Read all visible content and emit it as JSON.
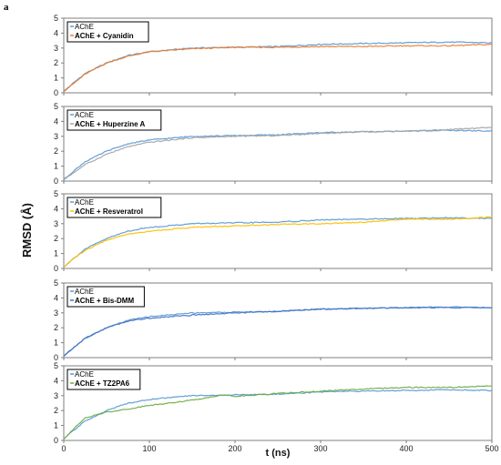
{
  "figure": {
    "panel_letter": "a",
    "ylabel": "RMSD (Å)",
    "xlabel": "t (ns)"
  },
  "chart_data": [
    {
      "type": "line",
      "xlabel": "",
      "ylabel": "",
      "xlim": [
        0,
        500
      ],
      "ylim": [
        0,
        5
      ],
      "xticks": [],
      "yticks": [
        0,
        1,
        2,
        3,
        4,
        5
      ],
      "grid": false,
      "legend_position": "top-left",
      "series": [
        {
          "name": "AChE",
          "color": "#5b9bd5",
          "x": [
            0,
            10,
            25,
            50,
            75,
            100,
            150,
            200,
            250,
            300,
            350,
            400,
            450,
            500
          ],
          "y": [
            0.1,
            0.6,
            1.3,
            2.0,
            2.5,
            2.75,
            3.0,
            3.05,
            3.1,
            3.25,
            3.3,
            3.35,
            3.4,
            3.35
          ]
        },
        {
          "name": "AChE + Cyanidin",
          "color": "#ed7d31",
          "x": [
            0,
            10,
            25,
            50,
            75,
            100,
            150,
            200,
            250,
            300,
            350,
            400,
            450,
            500
          ],
          "y": [
            0.1,
            0.55,
            1.25,
            2.0,
            2.45,
            2.75,
            2.95,
            3.05,
            3.05,
            3.1,
            3.1,
            3.15,
            3.15,
            3.25
          ]
        }
      ]
    },
    {
      "type": "line",
      "xlabel": "",
      "ylabel": "",
      "xlim": [
        0,
        500
      ],
      "ylim": [
        0,
        5
      ],
      "xticks": [],
      "yticks": [
        0,
        1,
        2,
        3,
        4,
        5
      ],
      "grid": false,
      "legend_position": "top-left",
      "series": [
        {
          "name": "AChE",
          "color": "#5b9bd5",
          "x": [
            0,
            10,
            25,
            50,
            75,
            100,
            150,
            200,
            250,
            300,
            350,
            400,
            450,
            500
          ],
          "y": [
            0.1,
            0.6,
            1.3,
            2.0,
            2.5,
            2.75,
            3.0,
            3.05,
            3.1,
            3.25,
            3.3,
            3.35,
            3.4,
            3.35
          ]
        },
        {
          "name": "AChE + Huperzine A",
          "color": "#a5a5a5",
          "x": [
            0,
            10,
            25,
            50,
            75,
            100,
            150,
            200,
            250,
            300,
            350,
            400,
            450,
            500
          ],
          "y": [
            0.1,
            0.5,
            1.1,
            1.8,
            2.3,
            2.6,
            2.9,
            3.0,
            3.05,
            3.2,
            3.3,
            3.35,
            3.45,
            3.6
          ]
        }
      ]
    },
    {
      "type": "line",
      "xlabel": "",
      "ylabel": "",
      "xlim": [
        0,
        500
      ],
      "ylim": [
        0,
        5
      ],
      "xticks": [],
      "yticks": [
        0,
        1,
        2,
        3,
        4,
        5
      ],
      "grid": false,
      "legend_position": "top-left",
      "series": [
        {
          "name": "AChE",
          "color": "#5b9bd5",
          "x": [
            0,
            10,
            25,
            50,
            75,
            100,
            150,
            200,
            250,
            300,
            350,
            400,
            450,
            500
          ],
          "y": [
            0.1,
            0.6,
            1.3,
            2.0,
            2.5,
            2.75,
            3.0,
            3.05,
            3.1,
            3.25,
            3.3,
            3.35,
            3.4,
            3.35
          ]
        },
        {
          "name": "AChE + Resveratrol",
          "color": "#ffc000",
          "x": [
            0,
            10,
            25,
            50,
            75,
            100,
            150,
            200,
            250,
            300,
            350,
            400,
            450,
            500
          ],
          "y": [
            0.1,
            0.6,
            1.2,
            1.9,
            2.3,
            2.5,
            2.75,
            2.85,
            2.95,
            3.0,
            3.1,
            3.3,
            3.3,
            3.45
          ]
        }
      ]
    },
    {
      "type": "line",
      "xlabel": "",
      "ylabel": "",
      "xlim": [
        0,
        500
      ],
      "ylim": [
        0,
        5
      ],
      "xticks": [],
      "yticks": [
        0,
        1,
        2,
        3,
        4,
        5
      ],
      "grid": false,
      "legend_position": "top-left",
      "series": [
        {
          "name": "AChE",
          "color": "#5b9bd5",
          "x": [
            0,
            10,
            25,
            50,
            75,
            100,
            150,
            200,
            250,
            300,
            350,
            400,
            450,
            500
          ],
          "y": [
            0.1,
            0.6,
            1.3,
            2.0,
            2.5,
            2.75,
            3.0,
            3.05,
            3.1,
            3.25,
            3.3,
            3.35,
            3.4,
            3.35
          ]
        },
        {
          "name": "AChE + Bis-DMM",
          "color": "#4472c4",
          "x": [
            0,
            10,
            25,
            50,
            75,
            100,
            150,
            200,
            250,
            300,
            350,
            400,
            450,
            500
          ],
          "y": [
            0.1,
            0.6,
            1.3,
            2.0,
            2.45,
            2.65,
            2.85,
            3.0,
            3.1,
            3.25,
            3.3,
            3.35,
            3.35,
            3.35
          ]
        }
      ]
    },
    {
      "type": "line",
      "xlabel": "t (ns)",
      "ylabel": "",
      "xlim": [
        0,
        500
      ],
      "ylim": [
        0,
        5
      ],
      "xticks": [
        0,
        100,
        200,
        300,
        400,
        500
      ],
      "yticks": [
        0,
        1,
        2,
        3,
        4,
        5
      ],
      "grid": false,
      "legend_position": "top-left",
      "series": [
        {
          "name": "AChE",
          "color": "#5b9bd5",
          "x": [
            0,
            10,
            25,
            50,
            75,
            100,
            150,
            200,
            250,
            300,
            350,
            400,
            450,
            500
          ],
          "y": [
            0.1,
            0.6,
            1.3,
            2.0,
            2.5,
            2.75,
            3.0,
            3.05,
            3.1,
            3.25,
            3.3,
            3.35,
            3.4,
            3.35
          ]
        },
        {
          "name": "AChE + TZ2PA6",
          "color": "#70ad47",
          "x": [
            0,
            10,
            25,
            50,
            75,
            100,
            150,
            180,
            190,
            200,
            250,
            300,
            350,
            400,
            450,
            500
          ],
          "y": [
            0.1,
            0.7,
            1.5,
            1.9,
            2.1,
            2.35,
            2.7,
            3.0,
            3.05,
            2.95,
            3.15,
            3.3,
            3.45,
            3.55,
            3.55,
            3.65
          ]
        }
      ]
    }
  ]
}
